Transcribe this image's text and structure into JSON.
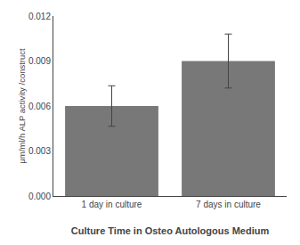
{
  "chart_data": {
    "type": "bar",
    "categories": [
      "1 day in culture",
      "7 days in culture"
    ],
    "values": [
      0.006,
      0.009
    ],
    "errors": [
      0.00135,
      0.0018
    ],
    "color": "#787878",
    "xlabel": "Culture Time in Osteo Autologous Medium",
    "ylabel": "μm/ml/h ALP activity /construct",
    "ylim": [
      0,
      0.012
    ],
    "yticks": [
      {
        "value": 0,
        "label": "0.000"
      },
      0.003,
      0.006,
      0.009,
      0.012
    ],
    "grid": false
  }
}
